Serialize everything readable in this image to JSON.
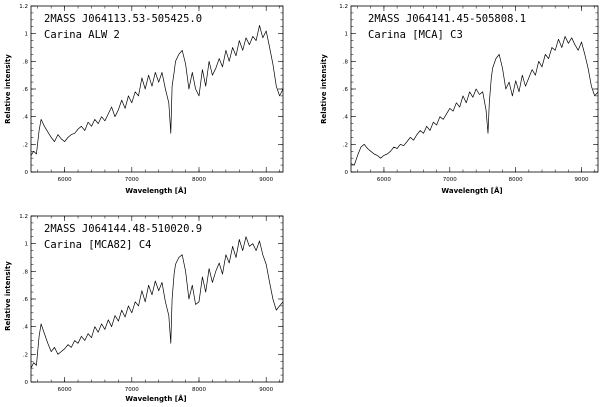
{
  "chart_data": [
    {
      "type": "line",
      "title_lines": [
        "2MASS J064113.53-505425.0",
        "Carina ALW 2"
      ],
      "xlabel": "Wavelength [Å]",
      "ylabel": "Relative intensity",
      "xlim": [
        5500,
        9250
      ],
      "ylim": [
        0,
        1.2
      ],
      "xticks": [
        6000,
        7000,
        8000,
        9000
      ],
      "yticks": [
        0,
        0.2,
        0.4,
        0.6,
        0.8,
        1,
        1.2
      ],
      "ytick_labels": [
        "0",
        ".2",
        ".4",
        ".6",
        ".8",
        "1",
        "1.2"
      ],
      "series": [
        {
          "x": [
            5500,
            5540,
            5580,
            5620,
            5650,
            5700,
            5750,
            5800,
            5850,
            5900,
            5950,
            6000,
            6050,
            6100,
            6150,
            6200,
            6250,
            6300,
            6350,
            6400,
            6450,
            6500,
            6550,
            6600,
            6650,
            6700,
            6750,
            6800,
            6850,
            6900,
            6950,
            7000,
            7050,
            7100,
            7150,
            7200,
            7250,
            7300,
            7350,
            7400,
            7450,
            7500,
            7550,
            7580,
            7600,
            7630,
            7650,
            7700,
            7750,
            7800,
            7850,
            7900,
            7950,
            8000,
            8050,
            8100,
            8150,
            8200,
            8250,
            8300,
            8350,
            8400,
            8450,
            8500,
            8550,
            8600,
            8650,
            8700,
            8750,
            8800,
            8850,
            8900,
            8950,
            9000,
            9050,
            9100,
            9150,
            9200,
            9250
          ],
          "y": [
            0.12,
            0.15,
            0.13,
            0.3,
            0.38,
            0.33,
            0.29,
            0.25,
            0.22,
            0.27,
            0.24,
            0.22,
            0.25,
            0.27,
            0.28,
            0.31,
            0.33,
            0.3,
            0.36,
            0.33,
            0.38,
            0.35,
            0.4,
            0.37,
            0.42,
            0.47,
            0.4,
            0.45,
            0.52,
            0.46,
            0.55,
            0.5,
            0.58,
            0.55,
            0.68,
            0.6,
            0.7,
            0.62,
            0.72,
            0.65,
            0.72,
            0.6,
            0.5,
            0.28,
            0.62,
            0.72,
            0.8,
            0.85,
            0.88,
            0.78,
            0.6,
            0.72,
            0.6,
            0.55,
            0.74,
            0.62,
            0.8,
            0.7,
            0.75,
            0.82,
            0.76,
            0.88,
            0.8,
            0.9,
            0.84,
            0.95,
            0.88,
            0.97,
            0.92,
            0.98,
            0.95,
            1.06,
            0.97,
            1.02,
            0.9,
            0.78,
            0.62,
            0.55,
            0.6
          ]
        }
      ]
    },
    {
      "type": "line",
      "title_lines": [
        "2MASS J064141.45-505808.1",
        "Carina [MCA] C3"
      ],
      "xlabel": "Wavelength [Å]",
      "ylabel": "Relative intensity",
      "xlim": [
        5500,
        9250
      ],
      "ylim": [
        0,
        1.2
      ],
      "xticks": [
        6000,
        7000,
        8000,
        9000
      ],
      "yticks": [
        0,
        0.2,
        0.4,
        0.6,
        0.8,
        1,
        1.2
      ],
      "ytick_labels": [
        "0",
        ".2",
        ".4",
        ".6",
        ".8",
        "1",
        "1.2"
      ],
      "series": [
        {
          "x": [
            5500,
            5550,
            5600,
            5650,
            5700,
            5750,
            5800,
            5850,
            5900,
            5950,
            6000,
            6050,
            6100,
            6150,
            6200,
            6250,
            6300,
            6350,
            6400,
            6450,
            6500,
            6550,
            6600,
            6650,
            6700,
            6750,
            6800,
            6850,
            6900,
            6950,
            7000,
            7050,
            7100,
            7150,
            7200,
            7250,
            7300,
            7350,
            7400,
            7450,
            7500,
            7550,
            7580,
            7600,
            7630,
            7650,
            7700,
            7750,
            7800,
            7850,
            7900,
            7950,
            8000,
            8050,
            8100,
            8150,
            8200,
            8250,
            8300,
            8350,
            8400,
            8450,
            8500,
            8550,
            8600,
            8650,
            8700,
            8750,
            8800,
            8850,
            8900,
            8950,
            9000,
            9050,
            9100,
            9150,
            9200,
            9250
          ],
          "y": [
            0.06,
            0.05,
            0.12,
            0.18,
            0.2,
            0.17,
            0.15,
            0.13,
            0.12,
            0.1,
            0.12,
            0.13,
            0.15,
            0.18,
            0.17,
            0.2,
            0.19,
            0.22,
            0.25,
            0.23,
            0.27,
            0.3,
            0.28,
            0.33,
            0.3,
            0.36,
            0.34,
            0.4,
            0.38,
            0.42,
            0.46,
            0.44,
            0.5,
            0.47,
            0.55,
            0.5,
            0.58,
            0.54,
            0.6,
            0.56,
            0.58,
            0.45,
            0.28,
            0.5,
            0.68,
            0.75,
            0.82,
            0.85,
            0.75,
            0.6,
            0.65,
            0.55,
            0.66,
            0.58,
            0.7,
            0.62,
            0.68,
            0.74,
            0.7,
            0.8,
            0.76,
            0.85,
            0.82,
            0.9,
            0.88,
            0.96,
            0.9,
            0.98,
            0.93,
            0.97,
            0.92,
            0.88,
            0.94,
            0.85,
            0.75,
            0.62,
            0.55,
            0.58
          ]
        }
      ]
    },
    {
      "type": "line",
      "title_lines": [
        "2MASS J064144.48-510020.9",
        "Carina [MCA82] C4"
      ],
      "xlabel": "Wavelength [Å]",
      "ylabel": "Relative intensity",
      "xlim": [
        5500,
        9250
      ],
      "ylim": [
        0,
        1.2
      ],
      "xticks": [
        6000,
        7000,
        8000,
        9000
      ],
      "yticks": [
        0,
        0.2,
        0.4,
        0.6,
        0.8,
        1,
        1.2
      ],
      "ytick_labels": [
        "0",
        ".2",
        ".4",
        ".6",
        ".8",
        "1",
        "1.2"
      ],
      "series": [
        {
          "x": [
            5500,
            5540,
            5580,
            5620,
            5650,
            5700,
            5750,
            5800,
            5850,
            5900,
            5950,
            6000,
            6050,
            6100,
            6150,
            6200,
            6250,
            6300,
            6350,
            6400,
            6450,
            6500,
            6550,
            6600,
            6650,
            6700,
            6750,
            6800,
            6850,
            6900,
            6950,
            7000,
            7050,
            7100,
            7150,
            7200,
            7250,
            7300,
            7350,
            7400,
            7450,
            7500,
            7550,
            7580,
            7600,
            7630,
            7650,
            7700,
            7750,
            7800,
            7850,
            7900,
            7950,
            8000,
            8050,
            8100,
            8150,
            8200,
            8250,
            8300,
            8350,
            8400,
            8450,
            8500,
            8550,
            8600,
            8650,
            8700,
            8750,
            8800,
            8850,
            8900,
            8950,
            9000,
            9050,
            9100,
            9150,
            9200,
            9250
          ],
          "y": [
            0.1,
            0.14,
            0.12,
            0.33,
            0.42,
            0.35,
            0.28,
            0.22,
            0.25,
            0.2,
            0.22,
            0.24,
            0.27,
            0.25,
            0.3,
            0.28,
            0.33,
            0.3,
            0.35,
            0.32,
            0.4,
            0.36,
            0.42,
            0.38,
            0.45,
            0.4,
            0.48,
            0.44,
            0.52,
            0.47,
            0.55,
            0.5,
            0.58,
            0.55,
            0.66,
            0.58,
            0.7,
            0.63,
            0.73,
            0.66,
            0.72,
            0.58,
            0.48,
            0.28,
            0.6,
            0.78,
            0.85,
            0.9,
            0.92,
            0.8,
            0.6,
            0.7,
            0.56,
            0.58,
            0.76,
            0.65,
            0.82,
            0.72,
            0.8,
            0.86,
            0.78,
            0.92,
            0.86,
            0.98,
            0.9,
            1.03,
            0.95,
            1.05,
            0.98,
            1.0,
            0.95,
            1.02,
            0.92,
            0.85,
            0.72,
            0.6,
            0.52,
            0.55,
            0.58
          ]
        }
      ]
    }
  ]
}
